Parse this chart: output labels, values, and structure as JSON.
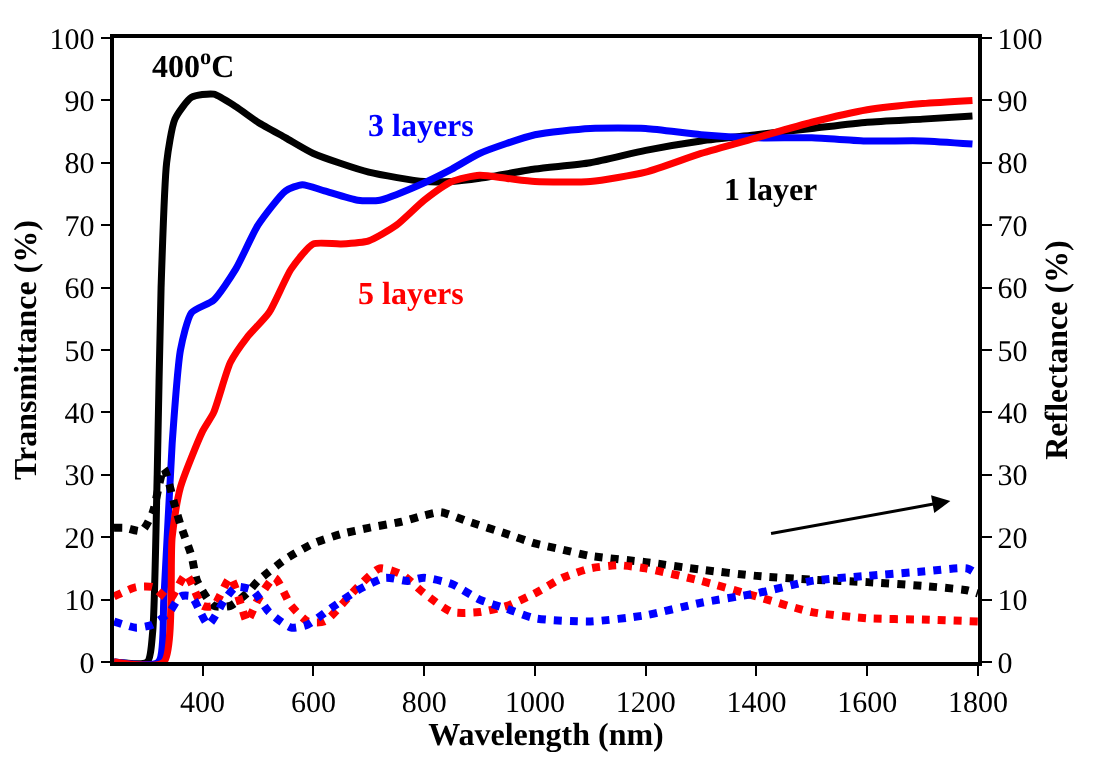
{
  "chart_data": {
    "type": "line",
    "xlabel": "Wavelength (nm)",
    "ylabel": "Transmittance (%)",
    "y2label": "Reflectance (%)",
    "xlim": [
      240,
      1800
    ],
    "xticks": [
      400,
      600,
      800,
      1000,
      1200,
      1400,
      1600,
      1800
    ],
    "ylim": [
      0,
      100
    ],
    "yticks": [
      0,
      10,
      20,
      30,
      40,
      50,
      60,
      70,
      80,
      90,
      100
    ],
    "y2lim": [
      0,
      100
    ],
    "y2ticks": [
      0,
      10,
      20,
      30,
      40,
      50,
      60,
      70,
      80,
      90,
      100
    ],
    "annotations": [
      "400$^{o}$C",
      "3 layers",
      "5 layers",
      "1 layer"
    ],
    "series": [
      {
        "color": "#000000",
        "line_style": "solid",
        "x": [
          240,
          300,
          310,
          318,
          325,
          335,
          350,
          380,
          420,
          460,
          500,
          550,
          600,
          700,
          800,
          850,
          900,
          1000,
          1100,
          1200,
          1300,
          1400,
          1500,
          1600,
          1700,
          1790
        ],
        "values": [
          0,
          0,
          5,
          30,
          60,
          80,
          87,
          90.5,
          91,
          89,
          86.5,
          84,
          81.5,
          78.5,
          77,
          77,
          77.5,
          79,
          80,
          82,
          83.5,
          84.5,
          85.5,
          86.5,
          87,
          87.5
        ]
      },
      {
        "color": "#0000ff",
        "line_style": "solid",
        "x": [
          240,
          320,
          330,
          345,
          360,
          380,
          420,
          460,
          500,
          550,
          580,
          620,
          680,
          720,
          780,
          850,
          900,
          1000,
          1100,
          1200,
          1300,
          1400,
          1500,
          1600,
          1700,
          1790
        ],
        "values": [
          0,
          0,
          10,
          35,
          50,
          56,
          58,
          63,
          70,
          75.5,
          76.5,
          75.5,
          74,
          74,
          76,
          79,
          81.5,
          84.5,
          85.5,
          85.5,
          84.5,
          84,
          84,
          83.5,
          83.5,
          83
        ]
      },
      {
        "color": "#ff0000",
        "line_style": "solid",
        "x": [
          240,
          330,
          345,
          360,
          400,
          420,
          450,
          480,
          520,
          560,
          600,
          650,
          700,
          750,
          800,
          850,
          900,
          950,
          1000,
          1100,
          1200,
          1300,
          1400,
          1500,
          1600,
          1700,
          1790
        ],
        "values": [
          0,
          0,
          20,
          28,
          37,
          40,
          48,
          52,
          56,
          63,
          67,
          67,
          67.5,
          70,
          74,
          77,
          78,
          77.5,
          77,
          77,
          78.5,
          81.5,
          84,
          86.5,
          88.5,
          89.5,
          90
        ]
      },
      {
        "color": "#000000",
        "line_style": "dotted",
        "axis": "y2",
        "x": [
          240,
          260,
          290,
          310,
          330,
          350,
          360,
          380,
          390,
          420,
          450,
          480,
          500,
          550,
          600,
          650,
          700,
          760,
          800,
          830,
          880,
          950,
          1000,
          1050,
          1100,
          1200,
          1300,
          1400,
          1500,
          1600,
          1700,
          1780,
          1800
        ],
        "values": [
          21.5,
          21.5,
          21,
          24,
          31,
          25,
          22,
          17,
          13,
          9,
          9,
          11,
          13,
          16.5,
          19,
          20.5,
          21.5,
          22.5,
          23.5,
          24,
          22.5,
          20.5,
          19,
          18,
          17,
          16,
          14.8,
          13.8,
          13.2,
          12.8,
          12.2,
          11.5,
          11
        ]
      },
      {
        "color": "#ff0000",
        "line_style": "dotted",
        "axis": "y2",
        "x": [
          240,
          280,
          310,
          340,
          370,
          400,
          420,
          450,
          470,
          480,
          500,
          530,
          560,
          590,
          620,
          680,
          720,
          760,
          800,
          850,
          900,
          950,
          1000,
          1050,
          1100,
          1150,
          1200,
          1300,
          1400,
          1500,
          1600,
          1700,
          1800
        ],
        "values": [
          10.5,
          12,
          12,
          10,
          14,
          9,
          9,
          13.5,
          9,
          6.5,
          10,
          13.5,
          9,
          6.5,
          6.5,
          12,
          15,
          14,
          11,
          8,
          8,
          9,
          11,
          13.5,
          15,
          15.5,
          15,
          13,
          10.5,
          8,
          7,
          6.8,
          6.5
        ]
      },
      {
        "color": "#0000ff",
        "line_style": "dotted",
        "axis": "y2",
        "x": [
          240,
          280,
          310,
          340,
          360,
          380,
          410,
          440,
          460,
          490,
          520,
          560,
          590,
          630,
          680,
          730,
          770,
          800,
          850,
          900,
          950,
          1000,
          1100,
          1200,
          1300,
          1400,
          1500,
          1600,
          1700,
          1780,
          1800
        ],
        "values": [
          6.5,
          5.5,
          6,
          8,
          10.5,
          10.5,
          6,
          10,
          12,
          11.5,
          8,
          5.5,
          6,
          8.5,
          11.5,
          13.5,
          13,
          13.5,
          12.5,
          10,
          8.5,
          7,
          6.5,
          7.5,
          9.5,
          11,
          13,
          13.8,
          14.5,
          15,
          14
        ]
      }
    ]
  }
}
